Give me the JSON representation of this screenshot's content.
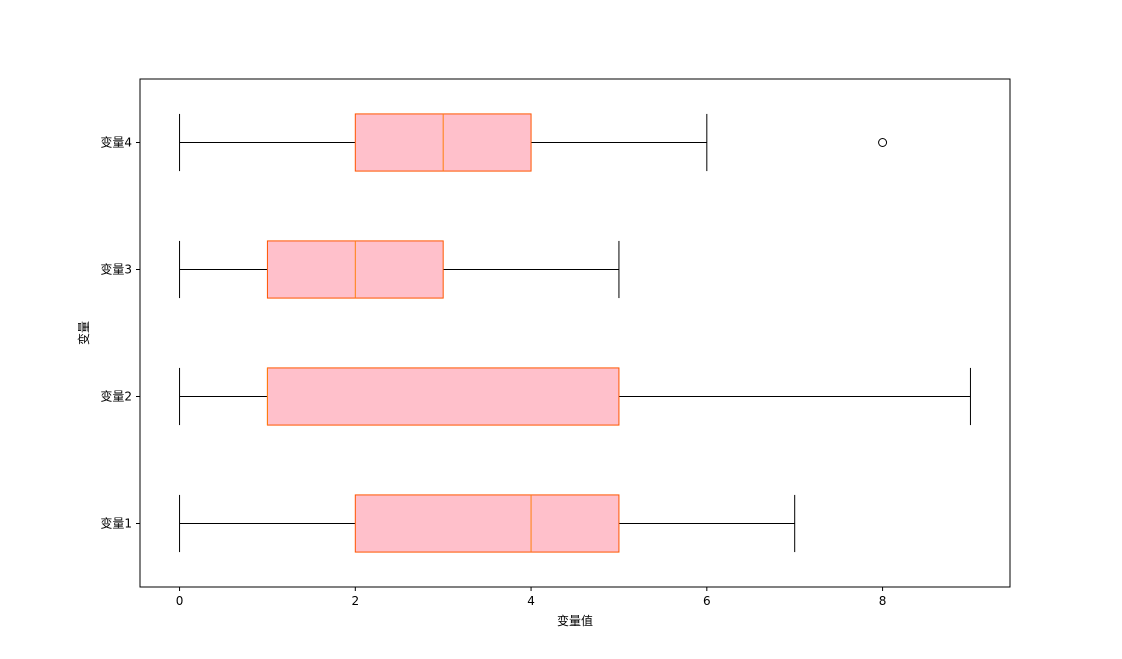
{
  "chart_data": {
    "type": "boxplot",
    "orientation": "horizontal",
    "xlabel": "变量值",
    "ylabel": "变量",
    "categories": [
      "变量1",
      "变量2",
      "变量3",
      "变量4"
    ],
    "boxes": [
      {
        "whislo": 0,
        "q1": 2,
        "med": 4,
        "q3": 5,
        "whishi": 7,
        "fliers": []
      },
      {
        "whislo": 0,
        "q1": 1,
        "med": 1,
        "q3": 5,
        "whishi": 9,
        "fliers": []
      },
      {
        "whislo": 0,
        "q1": 1,
        "med": 2,
        "q3": 3,
        "whishi": 5,
        "fliers": []
      },
      {
        "whislo": 0,
        "q1": 2,
        "med": 3,
        "q3": 4,
        "whishi": 6,
        "fliers": [
          8
        ]
      }
    ],
    "box_color": "#ffc0cb",
    "edge_color": "#ff5500",
    "median_color": "#ff7f0e",
    "xlim": [
      -0.45,
      9.45
    ],
    "xticks": [
      0,
      2,
      4,
      6,
      8
    ]
  }
}
